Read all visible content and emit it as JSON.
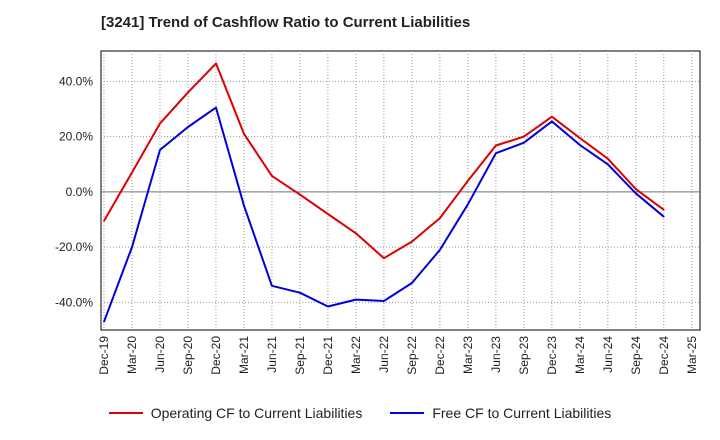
{
  "title": "[3241]  Trend of Cashflow Ratio to Current Liabilities",
  "chart_data": {
    "type": "line",
    "x": [
      "Dec-19",
      "Mar-20",
      "Jun-20",
      "Sep-20",
      "Dec-20",
      "Mar-21",
      "Jun-21",
      "Sep-21",
      "Dec-21",
      "Mar-22",
      "Jun-22",
      "Sep-22",
      "Dec-22",
      "Mar-23",
      "Jun-23",
      "Sep-23",
      "Dec-23",
      "Mar-24",
      "Jun-24",
      "Sep-24",
      "Dec-24",
      "Mar-25"
    ],
    "series": [
      {
        "name": "Operating CF to Current Liabilities",
        "color": "#dd0000",
        "values": [
          -10.5,
          7.0,
          24.8,
          36.0,
          46.5,
          21.0,
          5.8,
          -1.0,
          -8.0,
          -15.0,
          -24.0,
          -18.0,
          -9.5,
          4.0,
          16.8,
          20.0,
          27.2,
          19.5,
          12.0,
          1.0,
          -6.5,
          null
        ]
      },
      {
        "name": "Free CF to Current Liabilities",
        "color": "#0000dd",
        "values": [
          -47.0,
          -20.0,
          15.2,
          23.5,
          30.5,
          -5.0,
          -34.0,
          -36.5,
          -41.5,
          -39.0,
          -39.5,
          -33.0,
          -21.0,
          -4.5,
          14.0,
          17.8,
          25.5,
          17.0,
          10.0,
          -0.5,
          -9.0,
          null
        ]
      }
    ],
    "xlabel": "",
    "ylabel": "",
    "yticks": [
      "40.0%",
      "20.0%",
      "0.0%",
      "-20.0%",
      "-40.0%"
    ],
    "ytick_values": [
      40,
      20,
      0,
      -20,
      -40
    ],
    "ylim": [
      -50,
      51
    ],
    "grid": true,
    "legend_position": "bottom"
  }
}
